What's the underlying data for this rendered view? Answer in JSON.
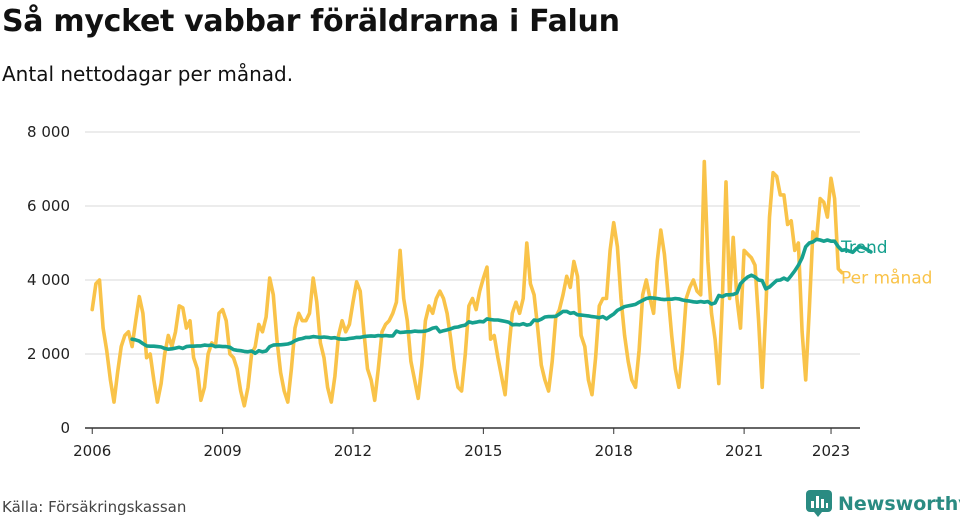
{
  "header": {
    "title": "Så mycket vabbar föräldrarna i Falun",
    "subtitle": "Antal nettodagar per månad."
  },
  "footer": {
    "source": "Källa: Försäkringskassan",
    "brand": "Newsworthy"
  },
  "colors": {
    "monthly": "#f9c349",
    "trend": "#16a08e",
    "grid": "#d9d9d9",
    "axis": "#333333",
    "brand": "#2a8b82"
  },
  "chart_data": {
    "type": "line",
    "title": "Så mycket vabbar föräldrarna i Falun",
    "subtitle": "Antal nettodagar per månad.",
    "xlabel": "",
    "ylabel": "",
    "xlim": [
      "2005-11",
      "2023-09"
    ],
    "ylim": [
      0,
      8000
    ],
    "y_ticks": [
      0,
      2000,
      4000,
      6000,
      8000
    ],
    "y_tick_labels": [
      "0",
      "2 000",
      "4 000",
      "6 000",
      "8 000"
    ],
    "x_ticks": [
      "2006-01",
      "2009-01",
      "2012-01",
      "2015-01",
      "2018-01",
      "2021-01",
      "2023-01"
    ],
    "x_tick_labels": [
      "2006",
      "2009",
      "2012",
      "2015",
      "2018",
      "2021",
      "2023"
    ],
    "grid": "horizontal",
    "legend": "inline-right",
    "series": [
      {
        "name": "Per månad",
        "start": "2006-01",
        "frequency": "monthly",
        "values": [
          3200,
          3900,
          4000,
          2700,
          2100,
          1300,
          700,
          1500,
          2200,
          2500,
          2600,
          2200,
          2900,
          3550,
          3100,
          1900,
          2000,
          1300,
          700,
          1200,
          2000,
          2500,
          2200,
          2600,
          3300,
          3250,
          2700,
          2900,
          1900,
          1600,
          750,
          1100,
          2000,
          2300,
          2200,
          3100,
          3200,
          2900,
          2000,
          1900,
          1600,
          1000,
          600,
          1100,
          2000,
          2200,
          2800,
          2600,
          3000,
          4050,
          3600,
          2400,
          1500,
          1000,
          700,
          1600,
          2700,
          3100,
          2900,
          2900,
          3100,
          4050,
          3400,
          2300,
          1900,
          1100,
          700,
          1400,
          2500,
          2900,
          2600,
          2800,
          3400,
          3950,
          3700,
          2600,
          1600,
          1300,
          750,
          1600,
          2600,
          2800,
          2900,
          3100,
          3400,
          4800,
          3500,
          2900,
          1800,
          1300,
          800,
          1700,
          2900,
          3300,
          3100,
          3500,
          3700,
          3500,
          3100,
          2400,
          1600,
          1100,
          1000,
          2000,
          3300,
          3500,
          3200,
          3700,
          4050,
          4350,
          2400,
          2500,
          1900,
          1400,
          900,
          2100,
          3100,
          3400,
          3100,
          3500,
          5000,
          3900,
          3600,
          2700,
          1700,
          1300,
          1000,
          1800,
          3000,
          3200,
          3600,
          4100,
          3800,
          4500,
          4100,
          2500,
          2200,
          1300,
          900,
          1900,
          3300,
          3500,
          3500,
          4800,
          5550,
          4900,
          3500,
          2500,
          1800,
          1300,
          1100,
          2100,
          3600,
          4000,
          3500,
          3100,
          4500,
          5350,
          4700,
          3600,
          2500,
          1600,
          1100,
          2100,
          3500,
          3800,
          4000,
          3700,
          3600,
          7200,
          4500,
          3100,
          2400,
          1200,
          3500,
          6650,
          3500,
          5150,
          3500,
          2700,
          4800,
          4700,
          4600,
          4400,
          2900,
          1100,
          3200,
          5700,
          6900,
          6800,
          6300,
          6300,
          5500,
          5600,
          4800,
          5000,
          2600,
          1300,
          3200,
          5300,
          5100,
          6200,
          6100,
          5700,
          6750,
          6200,
          4300,
          4200
        ]
      },
      {
        "name": "Trend",
        "start": "2006-12",
        "frequency": "monthly",
        "values": [
          2400,
          2380,
          2350,
          2280,
          2220,
          2210,
          2210,
          2200,
          2190,
          2150,
          2130,
          2140,
          2160,
          2180,
          2150,
          2200,
          2210,
          2210,
          2220,
          2220,
          2240,
          2230,
          2240,
          2200,
          2210,
          2200,
          2200,
          2180,
          2120,
          2100,
          2090,
          2070,
          2060,
          2080,
          2020,
          2090,
          2060,
          2080,
          2200,
          2240,
          2250,
          2250,
          2260,
          2270,
          2300,
          2360,
          2400,
          2420,
          2450,
          2450,
          2470,
          2460,
          2450,
          2460,
          2450,
          2430,
          2440,
          2410,
          2400,
          2400,
          2420,
          2430,
          2450,
          2450,
          2470,
          2480,
          2490,
          2480,
          2500,
          2490,
          2500,
          2490,
          2490,
          2620,
          2580,
          2590,
          2600,
          2600,
          2620,
          2610,
          2610,
          2620,
          2650,
          2700,
          2720,
          2600,
          2630,
          2650,
          2680,
          2720,
          2730,
          2760,
          2780,
          2870,
          2840,
          2860,
          2880,
          2870,
          2950,
          2930,
          2920,
          2920,
          2900,
          2880,
          2860,
          2790,
          2800,
          2790,
          2820,
          2780,
          2800,
          2920,
          2900,
          2940,
          3000,
          3010,
          3010,
          3020,
          3080,
          3150,
          3150,
          3100,
          3120,
          3060,
          3050,
          3040,
          3030,
          3010,
          3000,
          2980,
          3010,
          2950,
          3020,
          3080,
          3180,
          3230,
          3280,
          3300,
          3320,
          3340,
          3400,
          3450,
          3500,
          3520,
          3510,
          3500,
          3480,
          3470,
          3480,
          3480,
          3500,
          3490,
          3460,
          3440,
          3430,
          3410,
          3400,
          3420,
          3400,
          3420,
          3350,
          3380,
          3580,
          3550,
          3600,
          3600,
          3610,
          3650,
          3900,
          4000,
          4080,
          4130,
          4080,
          4000,
          3980,
          3760,
          3810,
          3900,
          3990,
          4000,
          4050,
          4000,
          4120,
          4250,
          4400,
          4600,
          4900,
          5000,
          5030,
          5100,
          5080,
          5050,
          5080,
          5050,
          5050,
          4900,
          4800,
          4820,
          4780,
          4750,
          4850,
          4900,
          4870,
          4820,
          4760
        ]
      }
    ]
  }
}
